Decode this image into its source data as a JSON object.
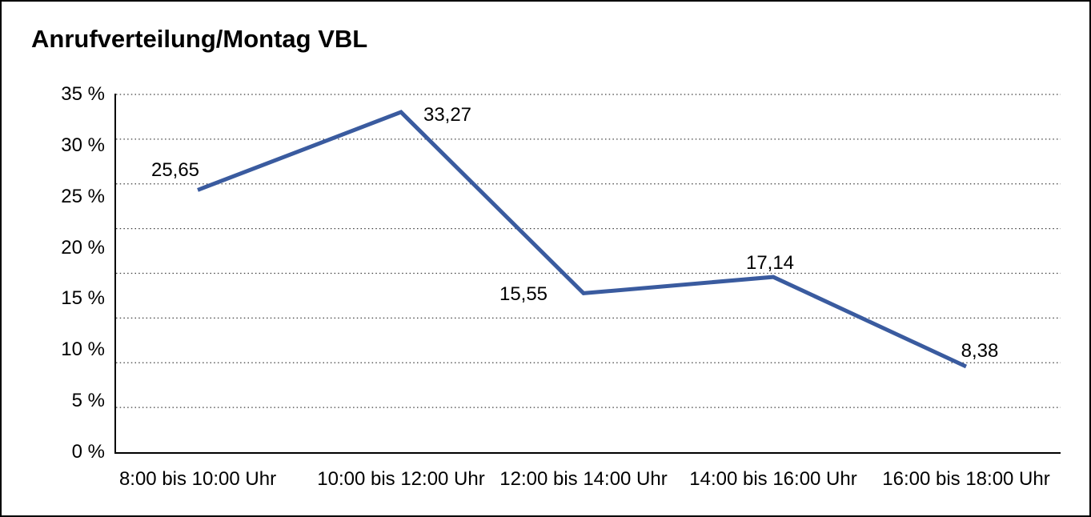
{
  "chart_data": {
    "type": "line",
    "title": "Anrufverteilung/Montag VBL",
    "categories": [
      "8:00 bis 10:00 Uhr",
      "10:00 bis 12:00 Uhr",
      "12:00 bis 14:00 Uhr",
      "14:00 bis 16:00 Uhr",
      "16:00 bis 18:00 Uhr"
    ],
    "series": [
      {
        "name": "Anrufverteilung Montag VBL",
        "values": [
          25.65,
          33.27,
          15.55,
          17.14,
          8.38
        ],
        "value_labels": [
          "25,65",
          "33,27",
          "15,55",
          "17,14",
          "8,38"
        ],
        "color": "#3a5b9f"
      }
    ],
    "ylim": [
      0,
      35
    ],
    "yticks": [
      35,
      30,
      25,
      20,
      15,
      10,
      5,
      0
    ],
    "ytick_labels": [
      "35 %",
      "30 %",
      "25 %",
      "20 %",
      "15 %",
      "10 %",
      "5 %",
      "0 %"
    ],
    "xlabel": "",
    "ylabel": "",
    "legend": "none",
    "grid": "horizontal-dotted",
    "gridline_intervals": 8,
    "axis_color": "#000000",
    "gridline_color": "#3f3f3f",
    "text_color": "#000000",
    "background_color": "#ffffff",
    "frame_border_color": "#000000"
  }
}
